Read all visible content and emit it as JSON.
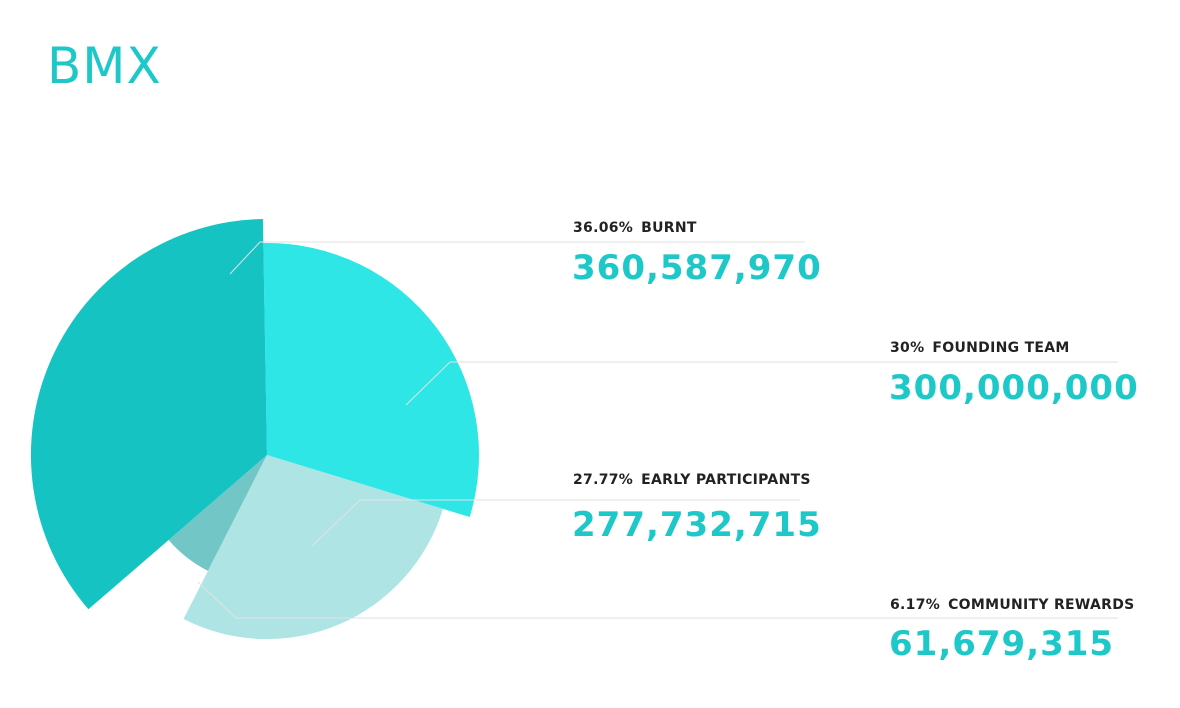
{
  "title": "BMX",
  "chart_data": {
    "type": "pie",
    "title": "BMX",
    "slices": [
      {
        "label": "BURNT",
        "percent_text": "36.06%",
        "percent": 36.06,
        "amount": "360,587,970",
        "value": 360587970,
        "color": "#16c3c3"
      },
      {
        "label": "FOUNDING TEAM",
        "percent_text": "30%",
        "percent": 30,
        "amount": "300,000,000",
        "value": 300000000,
        "color": "#2ee6e6"
      },
      {
        "label": "EARLY PARTICIPANTS",
        "percent_text": "27.77%",
        "percent": 27.77,
        "amount": "277,732,715",
        "value": 277732715,
        "color": "#aee4e4"
      },
      {
        "label": "COMMUNITY REWARDS",
        "percent_text": "6.17%",
        "percent": 6.17,
        "amount": "61,679,315",
        "value": 61679315,
        "color": "#73c6c6"
      }
    ]
  }
}
